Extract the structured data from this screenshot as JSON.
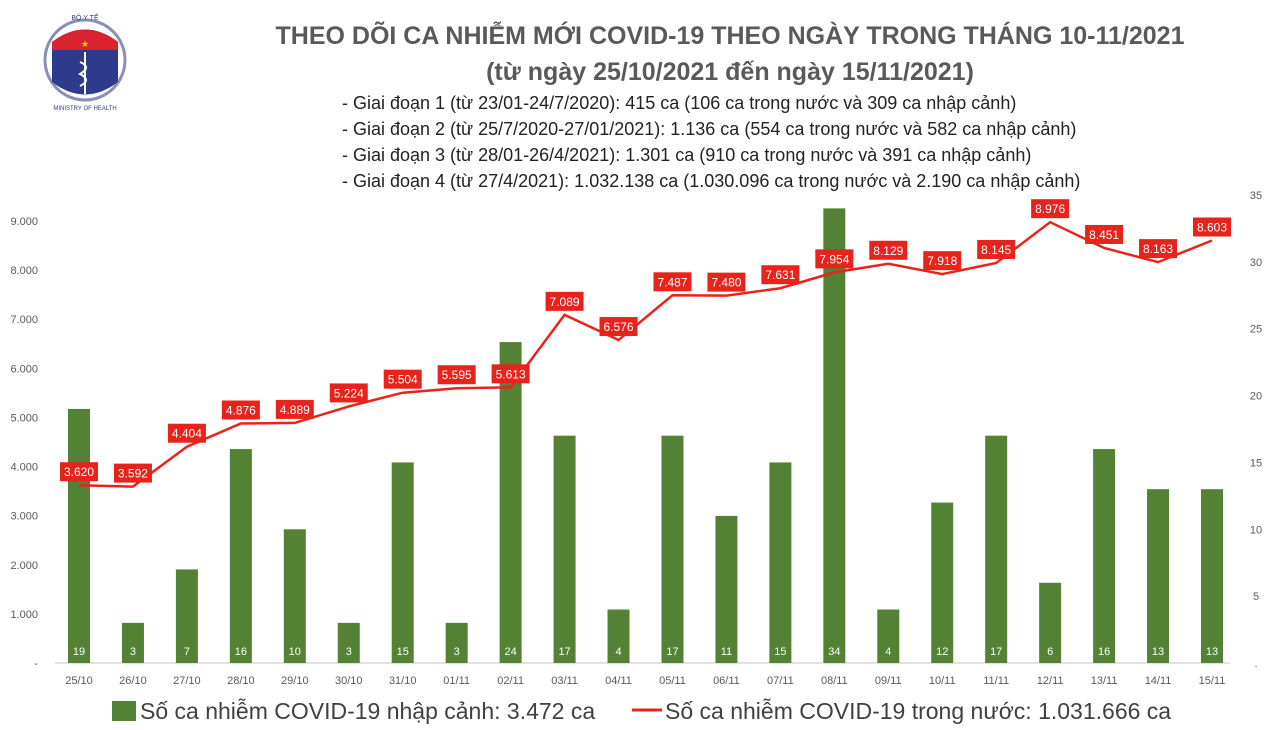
{
  "logo": {
    "text_top": "BỘ Y TẾ",
    "text_bottom": "MINISTRY OF HEALTH"
  },
  "header": {
    "title": "THEO DÕI CA NHIỄM MỚI COVID-19 THEO NGÀY TRONG THÁNG 10-11/2021",
    "subtitle": "(từ ngày 25/10/2021 đến ngày 15/11/2021)",
    "phases": [
      "- Giai đoạn 1 (từ 23/01-24/7/2020): 415 ca (106 ca trong nước và 309 ca nhập cảnh)",
      "- Giai đoạn 2 (từ 25/7/2020-27/01/2021): 1.136 ca (554 ca trong nước và 582 ca nhập cảnh)",
      "- Giai đoạn 3 (từ 28/01-26/4/2021): 1.301 ca (910 ca trong nước và 391 ca nhập cảnh)",
      "- Giai đoạn 4 (từ 27/4/2021): 1.032.138 ca (1.030.096 ca trong nước và 2.190 ca nhập cảnh)"
    ]
  },
  "chart_data": {
    "type": "bar+line",
    "categories": [
      "25/10",
      "26/10",
      "27/10",
      "28/10",
      "29/10",
      "30/10",
      "31/10",
      "01/11",
      "02/11",
      "03/11",
      "04/11",
      "05/11",
      "06/11",
      "07/11",
      "08/11",
      "09/11",
      "10/11",
      "11/11",
      "12/11",
      "13/11",
      "14/11",
      "15/11"
    ],
    "series": [
      {
        "name": "Số ca nhiễm COVID-19 nhập cảnh: 3.472 ca",
        "type": "bar",
        "axis": "right",
        "color": "#548235",
        "values": [
          19,
          3,
          7,
          16,
          10,
          3,
          15,
          3,
          24,
          17,
          4,
          17,
          11,
          15,
          34,
          4,
          12,
          17,
          6,
          16,
          13,
          13
        ],
        "labels": [
          "19",
          "3",
          "7",
          "16",
          "10",
          "3",
          "15",
          "3",
          "24",
          "17",
          "4",
          "17",
          "11",
          "15",
          "34",
          "4",
          "12",
          "17",
          "6",
          "16",
          "13",
          "13"
        ]
      },
      {
        "name": "Số ca nhiễm COVID-19 trong nước: 1.031.666 ca",
        "type": "line",
        "axis": "left",
        "color": "#e8231c",
        "values": [
          3620,
          3592,
          4404,
          4876,
          4889,
          5224,
          5504,
          5595,
          5613,
          7089,
          6576,
          7487,
          7480,
          7631,
          7954,
          8129,
          7918,
          8145,
          8976,
          8451,
          8163,
          8603
        ],
        "labels": [
          "3.620",
          "3.592",
          "4.404",
          "4.876",
          "4.889",
          "5.224",
          "5.504",
          "5.595",
          "5.613",
          "7.089",
          "6.576",
          "7.487",
          "7.480",
          "7.631",
          "7.954",
          "8.129",
          "7.918",
          "8.145",
          "8.976",
          "8.451",
          "8.163",
          "8.603"
        ]
      }
    ],
    "left_axis": {
      "range": [
        0,
        9000
      ],
      "ticks": [
        "-",
        "1.000",
        "2.000",
        "3.000",
        "4.000",
        "5.000",
        "6.000",
        "7.000",
        "8.000",
        "9.000"
      ]
    },
    "right_axis": {
      "range": [
        0,
        35
      ],
      "ticks": [
        "-",
        "5",
        "10",
        "15",
        "20",
        "25",
        "30",
        "35"
      ]
    },
    "grid": false,
    "legend": "bottom"
  }
}
